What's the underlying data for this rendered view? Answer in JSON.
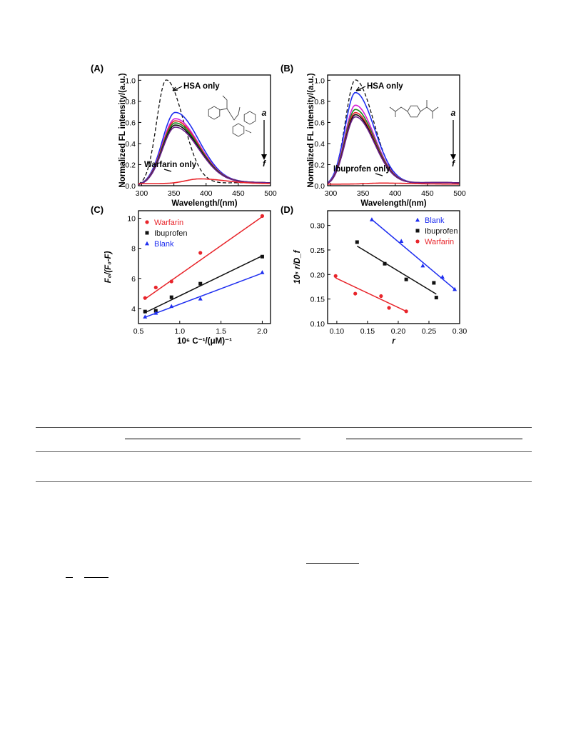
{
  "panels": [
    {
      "label": "(A)",
      "ylabel": "Normalized FL intensity/(a.u.)",
      "xlabel": "Wavelength/(nm)",
      "xticks": [
        "300",
        "350",
        "400",
        "450",
        "500"
      ],
      "yticks": [
        "0.0",
        "0.2",
        "0.4",
        "0.6",
        "0.8",
        "1.0"
      ],
      "annot_top": "HSA  only",
      "annot_bottom": "Warfarin only",
      "arrow_top": "a",
      "arrow_bottom": "f"
    },
    {
      "label": "(B)",
      "ylabel": "Normalized FL intensity/(a.u.)",
      "xlabel": "Wavelength/(nm)",
      "xticks": [
        "300",
        "350",
        "400",
        "450",
        "500"
      ],
      "yticks": [
        "0.0",
        "0.2",
        "0.4",
        "0.6",
        "0.8",
        "1.0"
      ],
      "annot_top": "HSA  only",
      "annot_bottom": "Ibuprofen only",
      "arrow_top": "a",
      "arrow_bottom": "f"
    },
    {
      "label": "(C)",
      "ylabel": "F₀/(F₀-F)",
      "xlabel": "10⁶ C⁻¹/(μM)⁻¹",
      "xticks": [
        "0.5",
        "1.0",
        "1.5",
        "2.0"
      ],
      "yticks": [
        "4",
        "6",
        "8",
        "10"
      ],
      "legend": [
        "Warfarin",
        "Ibuprofen",
        "Blank"
      ]
    },
    {
      "label": "(D)",
      "ylabel": "10⁵ r/D_f",
      "xlabel": "r",
      "xticks": [
        "0.10",
        "0.15",
        "0.20",
        "0.25",
        "0.30"
      ],
      "yticks": [
        "0.10",
        "0.15",
        "0.20",
        "0.25",
        "0.30"
      ],
      "legend": [
        "Blank",
        "Ibuprofen",
        "Warfarin"
      ]
    }
  ],
  "colors": {
    "red": "#e8252b",
    "black": "#111111",
    "blue": "#1f2ff0",
    "gray": "#555555",
    "magenta": "#d61fd6",
    "green": "#1a8a1a",
    "purple": "#6b1f8a"
  },
  "chart_data": [
    {
      "type": "line",
      "panel": "A",
      "xlabel": "Wavelength/(nm)",
      "ylabel": "Normalized FL intensity/(a.u.)",
      "xlim": [
        295,
        500
      ],
      "ylim": [
        0,
        1.05
      ],
      "series": [
        {
          "name": "HSA  only",
          "style": "dashed",
          "color": "#111111",
          "peak_x": 338,
          "peak_y": 1.0,
          "width": 38
        },
        {
          "style": "solid",
          "color": "#1f2ff0",
          "peak_x": 352,
          "peak_y": 0.69,
          "width": 52
        },
        {
          "style": "solid",
          "color": "#d61fd6",
          "peak_x": 352,
          "peak_y": 0.63,
          "width": 52
        },
        {
          "style": "solid",
          "color": "#e8252b",
          "peak_x": 352,
          "peak_y": 0.61,
          "width": 52
        },
        {
          "style": "solid",
          "color": "#1a8a1a",
          "peak_x": 352,
          "peak_y": 0.59,
          "width": 52
        },
        {
          "style": "solid",
          "color": "#111111",
          "peak_x": 352,
          "peak_y": 0.57,
          "width": 52
        },
        {
          "style": "solid",
          "color": "#6b1f8a",
          "peak_x": 352,
          "peak_y": 0.55,
          "width": 52
        },
        {
          "name": "Warfarin only",
          "style": "solid",
          "color": "#e8252b",
          "peak_x": 390,
          "peak_y": 0.065,
          "width": 55,
          "base": 0.02
        }
      ]
    },
    {
      "type": "line",
      "panel": "B",
      "xlabel": "Wavelength/(nm)",
      "ylabel": "Normalized FL intensity/(a.u.)",
      "xlim": [
        295,
        500
      ],
      "ylim": [
        0,
        1.05
      ],
      "series": [
        {
          "name": "HSA  only",
          "style": "dashed",
          "color": "#111111",
          "peak_x": 338,
          "peak_y": 1.0,
          "width": 40
        },
        {
          "style": "solid",
          "color": "#1f2ff0",
          "peak_x": 338,
          "peak_y": 0.88,
          "width": 42
        },
        {
          "style": "solid",
          "color": "#d61fd6",
          "peak_x": 338,
          "peak_y": 0.76,
          "width": 42
        },
        {
          "style": "solid",
          "color": "#1a8a1a",
          "peak_x": 338,
          "peak_y": 0.72,
          "width": 42
        },
        {
          "style": "solid",
          "color": "#e8252b",
          "peak_x": 338,
          "peak_y": 0.69,
          "width": 42
        },
        {
          "style": "solid",
          "color": "#111111",
          "peak_x": 338,
          "peak_y": 0.67,
          "width": 42
        },
        {
          "style": "solid",
          "color": "#6b1f8a",
          "peak_x": 338,
          "peak_y": 0.65,
          "width": 42
        },
        {
          "name": "Ibuprofen only",
          "style": "solid",
          "color": "#e8252b",
          "peak_x": 380,
          "peak_y": 0.025,
          "width": 60,
          "base": 0.015
        }
      ]
    },
    {
      "type": "scatter",
      "panel": "C",
      "xlabel": "10⁶ C⁻¹/(μM)⁻¹",
      "ylabel": "F₀/(F₀-F)",
      "xlim": [
        0.5,
        2.1
      ],
      "ylim": [
        3,
        10.5
      ],
      "series": [
        {
          "name": "Warfarin",
          "marker": "circle",
          "color": "#e8252b",
          "x": [
            0.58,
            0.71,
            0.9,
            1.25,
            2.0
          ],
          "y": [
            4.7,
            5.4,
            5.8,
            7.7,
            10.15
          ],
          "fit": [
            [
              0.57,
              4.6
            ],
            [
              2.0,
              10.1
            ]
          ]
        },
        {
          "name": "Ibuprofen",
          "marker": "square",
          "color": "#111111",
          "x": [
            0.58,
            0.71,
            0.9,
            1.25,
            2.0
          ],
          "y": [
            3.8,
            3.85,
            4.75,
            5.65,
            7.45
          ],
          "fit": [
            [
              0.57,
              3.7
            ],
            [
              2.0,
              7.5
            ]
          ]
        },
        {
          "name": "Blank",
          "marker": "triangle",
          "color": "#1f2ff0",
          "x": [
            0.58,
            0.71,
            0.9,
            1.25,
            2.0
          ],
          "y": [
            3.45,
            3.7,
            4.15,
            4.65,
            6.4
          ],
          "fit": [
            [
              0.57,
              3.4
            ],
            [
              2.0,
              6.35
            ]
          ]
        }
      ]
    },
    {
      "type": "scatter",
      "panel": "D",
      "xlabel": "r",
      "ylabel": "10⁵ r/D_f",
      "xlim": [
        0.085,
        0.3
      ],
      "ylim": [
        0.1,
        0.33
      ],
      "series": [
        {
          "name": "Blank",
          "marker": "triangle",
          "color": "#1f2ff0",
          "x": [
            0.157,
            0.205,
            0.24,
            0.272,
            0.292
          ],
          "y": [
            0.312,
            0.268,
            0.218,
            0.195,
            0.17
          ],
          "fit": [
            [
              0.157,
              0.312
            ],
            [
              0.292,
              0.17
            ]
          ]
        },
        {
          "name": "Ibuprofen",
          "marker": "square",
          "color": "#111111",
          "x": [
            0.133,
            0.178,
            0.213,
            0.258,
            0.262
          ],
          "y": [
            0.266,
            0.222,
            0.19,
            0.183,
            0.153
          ],
          "fit": [
            [
              0.133,
              0.258
            ],
            [
              0.262,
              0.16
            ]
          ]
        },
        {
          "name": "Warfarin",
          "marker": "circle",
          "color": "#e8252b",
          "x": [
            0.098,
            0.13,
            0.172,
            0.185,
            0.213
          ],
          "y": [
            0.197,
            0.161,
            0.156,
            0.132,
            0.125
          ],
          "fit": [
            [
              0.098,
              0.193
            ],
            [
              0.213,
              0.125
            ]
          ]
        }
      ]
    }
  ]
}
